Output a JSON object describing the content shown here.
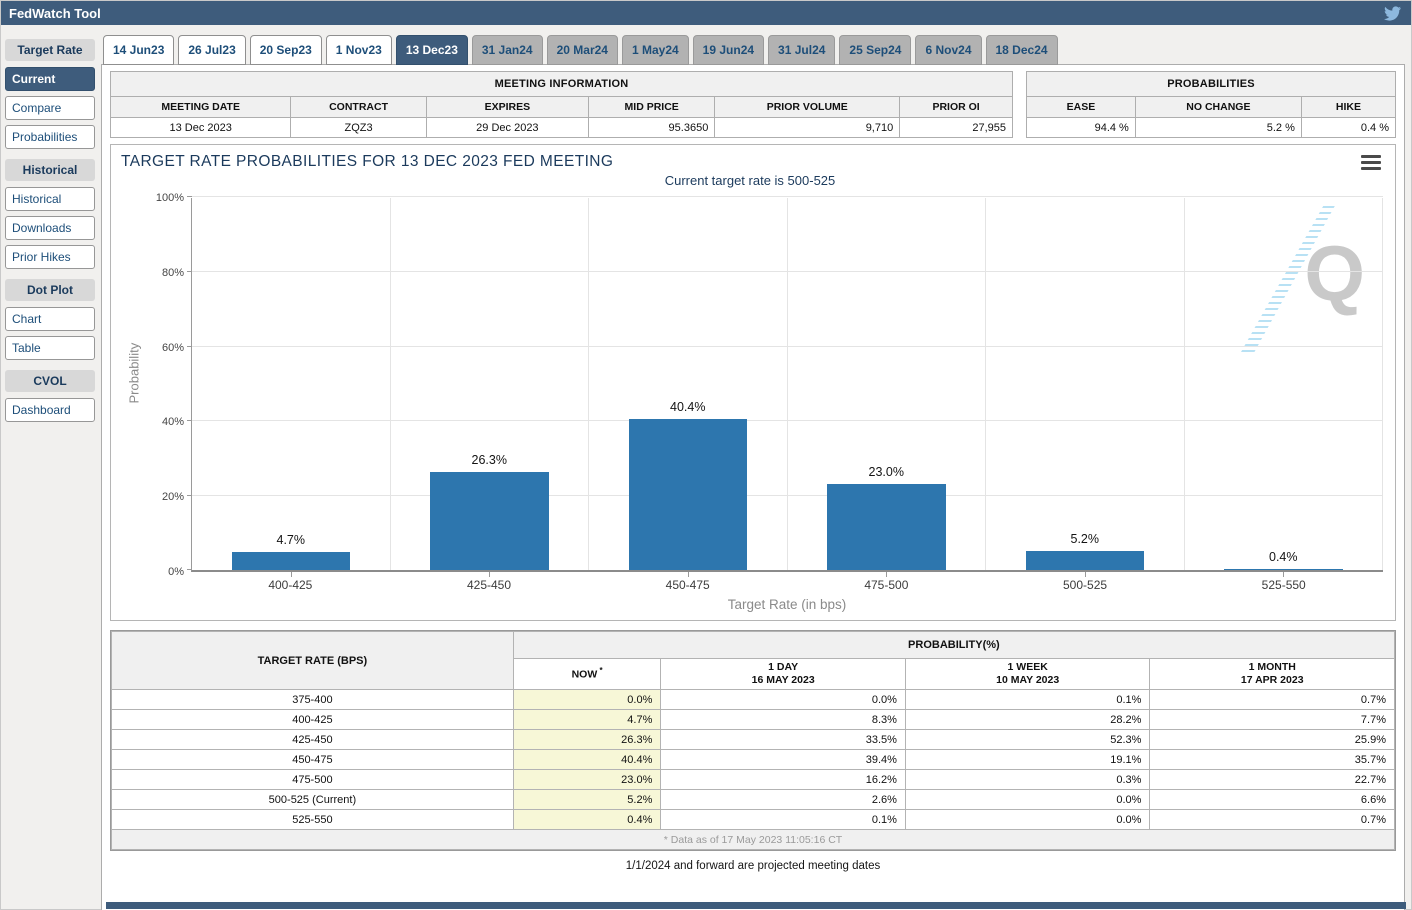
{
  "app": {
    "title": "FedWatch Tool"
  },
  "colors": {
    "header_bar": "#3e5c7c",
    "selected_tab": "#3e5c7c",
    "bar": "#2d76ae",
    "now_column_highlight": "#f7f7d7",
    "twitter_icon": "#8db8de"
  },
  "tabs": [
    {
      "label": "14 Jun23",
      "state": "past"
    },
    {
      "label": "26 Jul23",
      "state": "past"
    },
    {
      "label": "20 Sep23",
      "state": "past"
    },
    {
      "label": "1 Nov23",
      "state": "past"
    },
    {
      "label": "13 Dec23",
      "state": "selected"
    },
    {
      "label": "31 Jan24",
      "state": "future"
    },
    {
      "label": "20 Mar24",
      "state": "future"
    },
    {
      "label": "1 May24",
      "state": "future"
    },
    {
      "label": "19 Jun24",
      "state": "future"
    },
    {
      "label": "31 Jul24",
      "state": "future"
    },
    {
      "label": "25 Sep24",
      "state": "future"
    },
    {
      "label": "6 Nov24",
      "state": "future"
    },
    {
      "label": "18 Dec24",
      "state": "future"
    }
  ],
  "sidebar": {
    "sections": [
      {
        "header": "Target Rate",
        "items": [
          {
            "label": "Current",
            "selected": true
          },
          {
            "label": "Compare",
            "selected": false
          },
          {
            "label": "Probabilities",
            "selected": false
          }
        ]
      },
      {
        "header": "Historical",
        "items": [
          {
            "label": "Historical",
            "selected": false
          },
          {
            "label": "Downloads",
            "selected": false
          },
          {
            "label": "Prior Hikes",
            "selected": false
          }
        ]
      },
      {
        "header": "Dot Plot",
        "items": [
          {
            "label": "Chart",
            "selected": false
          },
          {
            "label": "Table",
            "selected": false
          }
        ]
      },
      {
        "header": "CVOL",
        "items": [
          {
            "label": "Dashboard",
            "selected": false
          }
        ]
      }
    ]
  },
  "meeting_info": {
    "title": "MEETING INFORMATION",
    "columns": [
      "MEETING DATE",
      "CONTRACT",
      "EXPIRES",
      "MID PRICE",
      "PRIOR VOLUME",
      "PRIOR OI"
    ],
    "values": [
      "13 Dec 2023",
      "ZQZ3",
      "29 Dec 2023",
      "95.3650",
      "9,710",
      "27,955"
    ],
    "align": [
      "c",
      "c",
      "c",
      "r",
      "r",
      "r"
    ],
    "col_widths": [
      "20%",
      "15%",
      "18%",
      "14%",
      "20.5%",
      "12.5%"
    ]
  },
  "probabilities_box": {
    "title": "PROBABILITIES",
    "columns": [
      "EASE",
      "NO CHANGE",
      "HIKE"
    ],
    "values": [
      "94.4 %",
      "5.2 %",
      "0.4 %"
    ],
    "col_widths": [
      "29.5%",
      "45%",
      "25.5%"
    ]
  },
  "chart_data": {
    "type": "bar",
    "title": "TARGET RATE PROBABILITIES FOR 13 DEC 2023 FED MEETING",
    "subtitle": "Current target rate is 500-525",
    "categories": [
      "400-425",
      "425-450",
      "450-475",
      "475-500",
      "500-525",
      "525-550"
    ],
    "values": [
      4.7,
      26.3,
      40.4,
      23.0,
      5.2,
      0.4
    ],
    "bar_labels": [
      "4.7%",
      "26.3%",
      "40.4%",
      "23.0%",
      "5.2%",
      "0.4%"
    ],
    "xlabel": "Target Rate (in bps)",
    "ylabel": "Probability",
    "ylim": [
      0,
      100
    ],
    "ytick_step": 20,
    "ytick_labels": [
      "0%",
      "20%",
      "40%",
      "60%",
      "80%",
      "100%"
    ],
    "grid": true,
    "legend": "none",
    "bar_color": "#2d76ae"
  },
  "prob_table": {
    "col1_header": "TARGET RATE (BPS)",
    "group_header": "PROBABILITY(%)",
    "columns": [
      {
        "label": "NOW",
        "sub": "",
        "asterisk": true
      },
      {
        "label": "1 DAY",
        "sub": "16 MAY 2023",
        "asterisk": false
      },
      {
        "label": "1 WEEK",
        "sub": "10 MAY 2023",
        "asterisk": false
      },
      {
        "label": "1 MONTH",
        "sub": "17 APR 2023",
        "asterisk": false
      }
    ],
    "rows": [
      {
        "rate": "375-400",
        "values": [
          "0.0%",
          "0.0%",
          "0.1%",
          "0.7%"
        ]
      },
      {
        "rate": "400-425",
        "values": [
          "4.7%",
          "8.3%",
          "28.2%",
          "7.7%"
        ]
      },
      {
        "rate": "425-450",
        "values": [
          "26.3%",
          "33.5%",
          "52.3%",
          "25.9%"
        ]
      },
      {
        "rate": "450-475",
        "values": [
          "40.4%",
          "39.4%",
          "19.1%",
          "35.7%"
        ]
      },
      {
        "rate": "475-500",
        "values": [
          "23.0%",
          "16.2%",
          "0.3%",
          "22.7%"
        ]
      },
      {
        "rate": "500-525 (Current)",
        "values": [
          "5.2%",
          "2.6%",
          "0.0%",
          "6.6%"
        ]
      },
      {
        "rate": "525-550",
        "values": [
          "0.4%",
          "0.1%",
          "0.0%",
          "0.7%"
        ]
      }
    ],
    "footnote": "* Data as of 17 May 2023 11:05:16 CT"
  },
  "footer": {
    "projected_note": "1/1/2024 and forward are projected meeting dates"
  }
}
